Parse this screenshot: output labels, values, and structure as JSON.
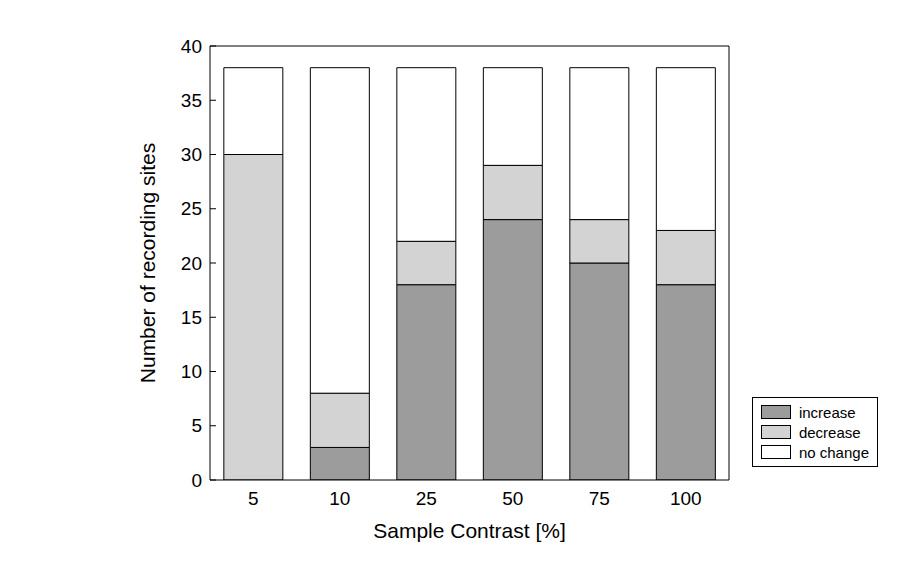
{
  "chart_data": {
    "type": "bar",
    "stacked": true,
    "x_label": "Sample Contrast [%]",
    "y_label": "Number of recording sites",
    "categories": [
      "5",
      "10",
      "25",
      "50",
      "75",
      "100"
    ],
    "series": [
      {
        "name": "increase",
        "color": "#9c9c9c",
        "values": [
          0,
          3,
          18,
          24,
          20,
          18
        ]
      },
      {
        "name": "decrease",
        "color": "#d3d3d3",
        "values": [
          30,
          5,
          4,
          5,
          4,
          5
        ]
      },
      {
        "name": "no change",
        "color": "#ffffff",
        "values": [
          8,
          30,
          16,
          9,
          14,
          15
        ]
      }
    ],
    "ylim": [
      0,
      40
    ],
    "yticks": [
      0,
      5,
      10,
      15,
      20,
      25,
      30,
      35,
      40
    ],
    "grid": false,
    "legend": "lower right"
  }
}
